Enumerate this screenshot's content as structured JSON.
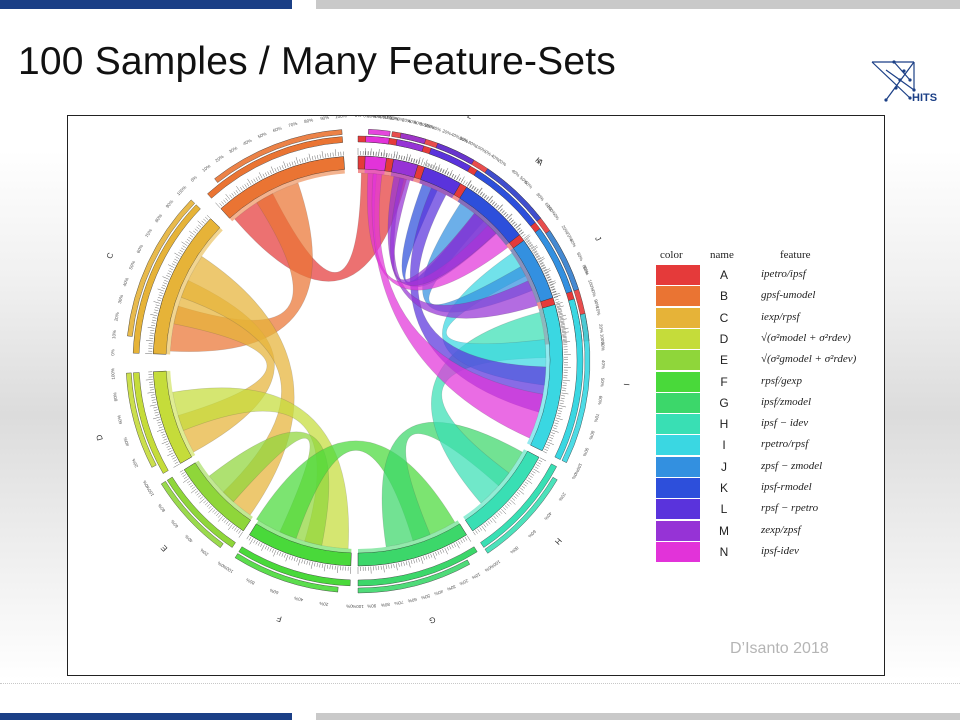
{
  "slide": {
    "title": "100 Samples / Many Feature-Sets",
    "logo_text": "HITS",
    "credit": "D’Isanto 2018"
  },
  "legend": {
    "headers": {
      "color": "color",
      "name": "name",
      "feature": "feature"
    },
    "rows": [
      {
        "name": "A",
        "color": "#e53a3a",
        "feature": "ipetro/ipsf"
      },
      {
        "name": "B",
        "color": "#ea7433",
        "feature": "gpsf-umodel"
      },
      {
        "name": "C",
        "color": "#e6b338",
        "feature": "iexp/rpsf"
      },
      {
        "name": "D",
        "color": "#c5dc3a",
        "feature": "√(σ²model + σ²rdev)"
      },
      {
        "name": "E",
        "color": "#8fd63a",
        "feature": "√(σ²gmodel + σ²rdev)"
      },
      {
        "name": "F",
        "color": "#49d93a",
        "feature": "rpsf/gexp"
      },
      {
        "name": "G",
        "color": "#3cd76a",
        "feature": "ipsf/zmodel"
      },
      {
        "name": "H",
        "color": "#39dfb4",
        "feature": "ipsf − idev"
      },
      {
        "name": "I",
        "color": "#3ad7e2",
        "feature": "rpetro/rpsf"
      },
      {
        "name": "J",
        "color": "#3390e0",
        "feature": "zpsf − zmodel"
      },
      {
        "name": "K",
        "color": "#2d4fdb",
        "feature": "ipsf-rmodel"
      },
      {
        "name": "L",
        "color": "#5a33dc",
        "feature": "rpsf − rpetro"
      },
      {
        "name": "M",
        "color": "#9633d6",
        "feature": "zexp/zpsf"
      },
      {
        "name": "N",
        "color": "#e233d9",
        "feature": "ipsf-idev"
      }
    ]
  },
  "circos": {
    "sectors": [
      {
        "name": "A",
        "start": -90,
        "end": -5,
        "color": "#e53a3a"
      },
      {
        "name": "B",
        "start": -132,
        "end": -94,
        "color": "#ea7433"
      },
      {
        "name": "C",
        "start": -178,
        "end": -136,
        "color": "#e6b338"
      },
      {
        "name": "D",
        "start": 150,
        "end": 177,
        "color": "#c5dc3a"
      },
      {
        "name": "E",
        "start": 124,
        "end": 148,
        "color": "#8fd63a"
      },
      {
        "name": "F",
        "start": 92,
        "end": 122,
        "color": "#49d93a"
      },
      {
        "name": "G",
        "start": 58,
        "end": 90,
        "color": "#3cd76a"
      },
      {
        "name": "H",
        "start": 28,
        "end": 56,
        "color": "#39dfb4"
      },
      {
        "name": "I",
        "start": -16,
        "end": 26,
        "color": "#3ad7e2"
      },
      {
        "name": "J",
        "start": -36,
        "end": -18,
        "color": "#3390e0"
      },
      {
        "name": "K",
        "start": -58,
        "end": -38,
        "color": "#2d4fdb"
      },
      {
        "name": "L",
        "start": -71,
        "end": -60,
        "color": "#5a33dc"
      },
      {
        "name": "M",
        "start": -80,
        "end": -73,
        "color": "#9633d6"
      },
      {
        "name": "N",
        "start": -88,
        "end": -82,
        "color": "#e233d9"
      }
    ],
    "tick_labels": [
      "0%",
      "10%",
      "20%",
      "30%",
      "40%",
      "50%",
      "60%",
      "70%",
      "80%",
      "90%",
      "100%"
    ],
    "links": [
      {
        "from": "A",
        "to": "B",
        "color": "#e53a3a"
      },
      {
        "from": "B",
        "to": "C",
        "color": "#ea7433"
      },
      {
        "from": "C",
        "to": "D",
        "color": "#e6b338"
      },
      {
        "from": "C",
        "to": "E",
        "color": "#e6b338"
      },
      {
        "from": "D",
        "to": "F",
        "color": "#c5dc3a"
      },
      {
        "from": "E",
        "to": "F",
        "color": "#8fd63a"
      },
      {
        "from": "F",
        "to": "G",
        "color": "#49d93a"
      },
      {
        "from": "G",
        "to": "H",
        "color": "#3cd76a"
      },
      {
        "from": "H",
        "to": "I",
        "color": "#39dfb4"
      },
      {
        "from": "I",
        "to": "J",
        "color": "#3ad7e2"
      },
      {
        "from": "J",
        "to": "K",
        "color": "#3390e0"
      },
      {
        "from": "K",
        "to": "L",
        "color": "#2d4fdb"
      },
      {
        "from": "L",
        "to": "I",
        "color": "#5a33dc"
      },
      {
        "from": "M",
        "to": "J",
        "color": "#9633d6"
      },
      {
        "from": "N",
        "to": "K",
        "color": "#e233d9"
      },
      {
        "from": "N",
        "to": "I",
        "color": "#e233d9"
      },
      {
        "from": "M",
        "to": "K",
        "color": "#9633d6"
      }
    ]
  }
}
